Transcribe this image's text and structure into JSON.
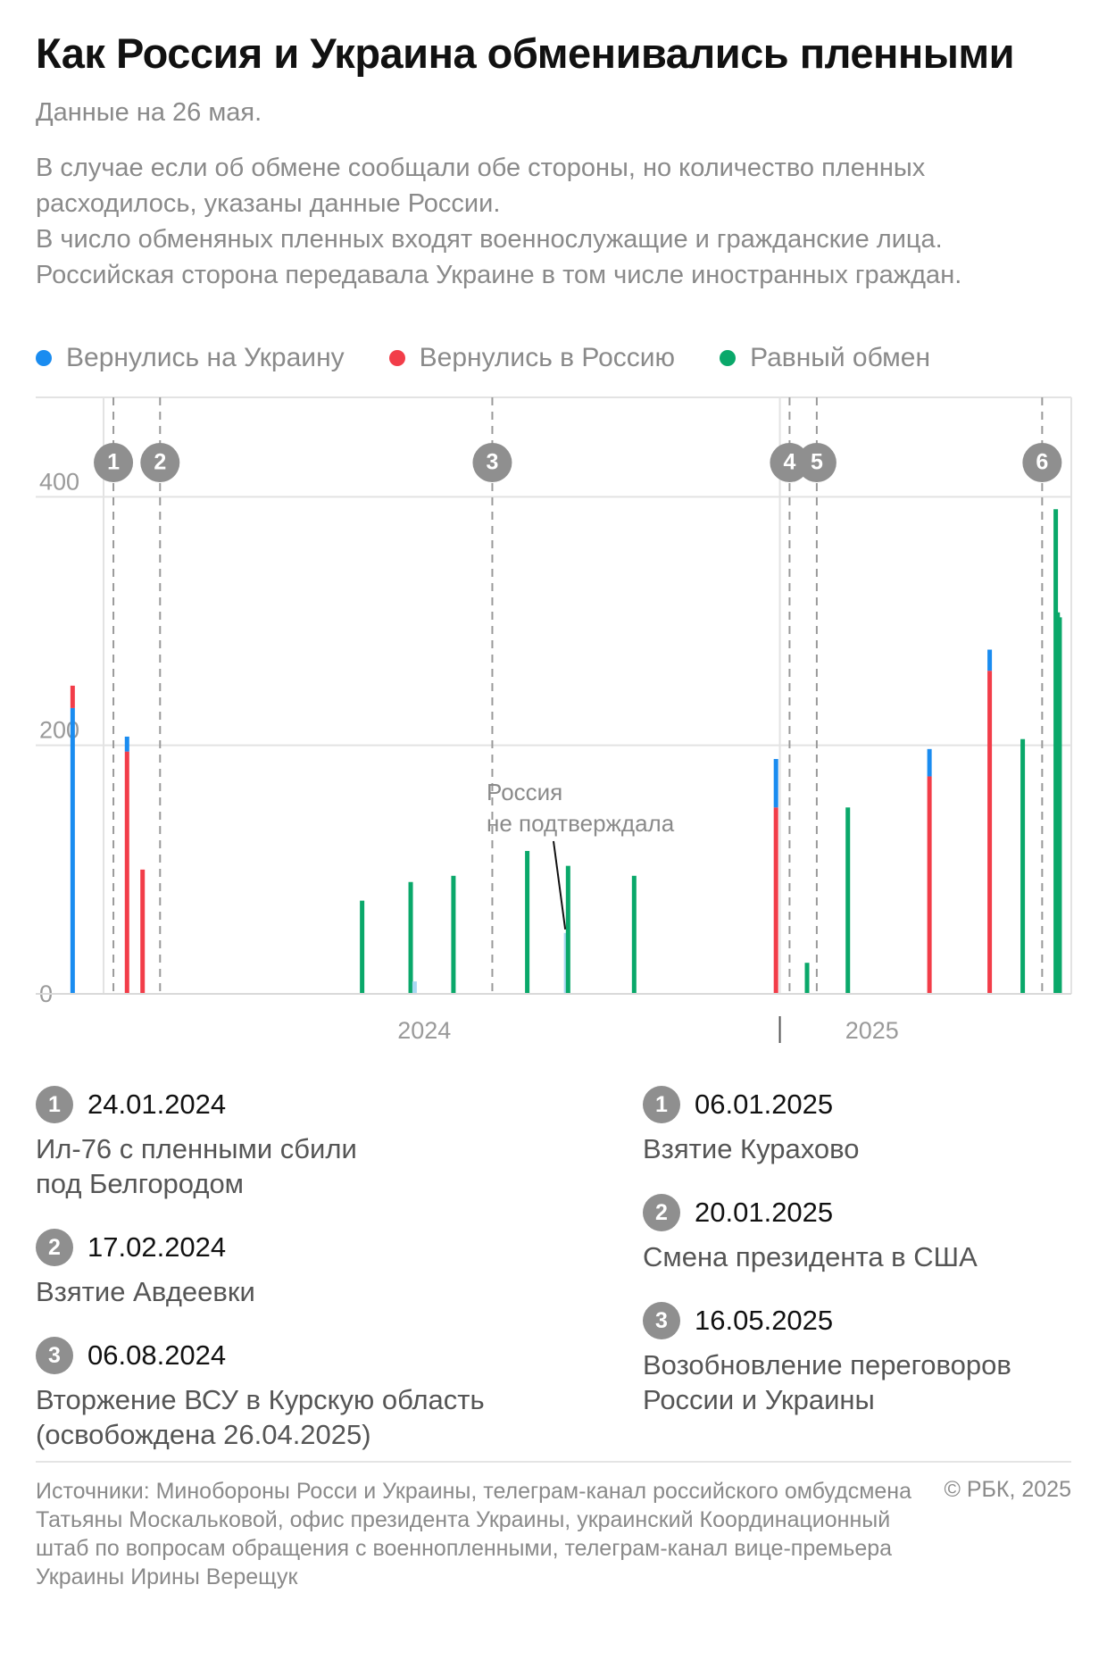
{
  "header": {
    "title": "Как Россия и Украина обменивались пленными",
    "subtitle": "Данные на 26 мая.",
    "notes": [
      "В случае если об обмене сообщали обе стороны, но количество пленных расходилось, указаны данные России.",
      "В число обменяных пленных входят военнослужащие и гражданские лица.",
      "Российская сторона передавала Украине в том числе иностранных граждан."
    ]
  },
  "legend": [
    {
      "label": "Вернулись на Украину",
      "color": "#1a8cf0"
    },
    {
      "label": "Вернулись в Россию",
      "color": "#f23d49"
    },
    {
      "label": "Равный обмен",
      "color": "#0aa86a"
    }
  ],
  "chart_data": {
    "type": "bar",
    "stacked": true,
    "x_axis": "date",
    "xlim": [
      "2023-12-15",
      "2025-05-31"
    ],
    "ylim": [
      0,
      480
    ],
    "y_ticks": [
      0,
      200,
      400
    ],
    "x_tick_labels": [
      "2024",
      "2025"
    ],
    "grid": true,
    "legend_position": "top-left",
    "series_colors": {
      "Вернулись на Украину": "#1a8cf0",
      "Вернулись в Россию": "#f23d49",
      "Равный обмен": "#0aa86a",
      "unconfirmed": "#a8d8f2"
    },
    "exchanges": [
      {
        "date": "2024-01-03",
        "type": "unequal",
        "returned_to_russia": 248,
        "returned_to_ukraine": 230
      },
      {
        "date": "2024-01-31",
        "type": "unequal",
        "returned_to_russia": 195,
        "returned_to_ukraine": 207
      },
      {
        "date": "2024-02-08",
        "type": "unequal",
        "returned_to_russia": 100,
        "returned_to_ukraine": 100
      },
      {
        "date": "2024-05-31",
        "type": "equal",
        "value": 75
      },
      {
        "date": "2024-06-25",
        "type": "equal",
        "value": 90
      },
      {
        "date": "2024-06-27",
        "type": "unconfirmed",
        "value": 10
      },
      {
        "date": "2024-07-17",
        "type": "equal",
        "value": 95
      },
      {
        "date": "2024-08-24",
        "type": "equal",
        "value": 115
      },
      {
        "date": "2024-09-13",
        "type": "unconfirmed",
        "value": 49
      },
      {
        "date": "2024-09-14",
        "type": "equal",
        "value": 103
      },
      {
        "date": "2024-10-18",
        "type": "equal",
        "value": 95
      },
      {
        "date": "2024-12-30",
        "type": "unequal",
        "returned_to_russia": 150,
        "returned_to_ukraine": 189
      },
      {
        "date": "2025-01-15",
        "type": "equal",
        "value": 25
      },
      {
        "date": "2025-02-05",
        "type": "equal",
        "value": 150
      },
      {
        "date": "2025-03-19",
        "type": "unequal",
        "returned_to_russia": 175,
        "returned_to_ukraine": 197
      },
      {
        "date": "2025-04-19",
        "type": "unequal",
        "returned_to_russia": 260,
        "returned_to_ukraine": 277
      },
      {
        "date": "2025-05-06",
        "type": "equal",
        "value": 205
      },
      {
        "date": "2025-05-23",
        "type": "equal",
        "value": 390
      },
      {
        "date": "2025-05-24",
        "type": "equal",
        "value": 307
      },
      {
        "date": "2025-05-25",
        "type": "equal",
        "value": 303
      }
    ],
    "markers": [
      {
        "num": "1",
        "date": "2024-01-24"
      },
      {
        "num": "2",
        "date": "2024-02-17"
      },
      {
        "num": "3",
        "date": "2024-08-06"
      },
      {
        "num": "4",
        "date": "2025-01-06"
      },
      {
        "num": "5",
        "date": "2025-01-20"
      },
      {
        "num": "6",
        "date": "2025-05-16"
      }
    ],
    "annotation": {
      "text": [
        "Россия",
        "не подтверждала"
      ],
      "target_date": "2024-09-13",
      "target_value": 49
    }
  },
  "events_2024": [
    {
      "num": "1",
      "date": "24.01.2024",
      "desc": [
        "Ил-76 с пленными сбили",
        "под Белгородом"
      ]
    },
    {
      "num": "2",
      "date": "17.02.2024",
      "desc": [
        "Взятие Авдеевки"
      ]
    },
    {
      "num": "3",
      "date": "06.08.2024",
      "desc": [
        "Вторжение ВСУ в Курскую область",
        "(освобождена 26.04.2025)"
      ]
    }
  ],
  "events_2025": [
    {
      "num": "1",
      "date": "06.01.2025",
      "desc": [
        "Взятие Курахово"
      ]
    },
    {
      "num": "2",
      "date": "20.01.2025",
      "desc": [
        "Смена президента в США"
      ]
    },
    {
      "num": "3",
      "date": "16.05.2025",
      "desc": [
        "Возобновление переговоров",
        "России и Украины"
      ]
    }
  ],
  "footer": {
    "sources": "Источники: Минобороны Росси и Украины, телеграм-канал российского омбудсмена Татьяны Москальковой, офис президента Украины, украинский Координационный штаб по вопросам обращения с военнопленными, телеграм-канал вице-премьера Украины Ирины Верещук",
    "copyright": "© РБК, 2025"
  }
}
